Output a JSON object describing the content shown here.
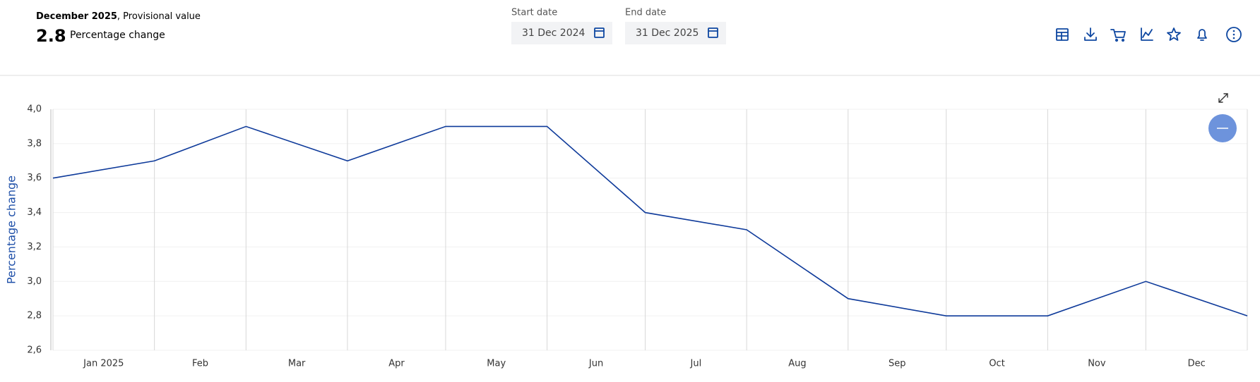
{
  "header": {
    "period": "December 2025",
    "status": ", Provisional value",
    "value": "2.8",
    "measure": "Percentage change",
    "start_label": "Start date",
    "start_date": "31 Dec 2024",
    "end_label": "End date",
    "end_date": "31 Dec 2025"
  },
  "chart_data": {
    "type": "line",
    "ylabel": "Percentage change",
    "xtick_labels": [
      "Jan 2025",
      "Feb",
      "Mar",
      "Apr",
      "May",
      "Jun",
      "Jul",
      "Aug",
      "Sep",
      "Oct",
      "Nov",
      "Dec"
    ],
    "series": [
      {
        "name": "Percentage change",
        "color": "#0e3a9a",
        "values": [
          3.6,
          3.7,
          3.9,
          3.7,
          3.9,
          3.9,
          3.4,
          3.3,
          2.9,
          2.8,
          2.8,
          3.0,
          2.8
        ]
      }
    ],
    "ylim": [
      2.6,
      4.0
    ],
    "yticks": [
      {
        "value": 2.6,
        "label": "2,6"
      },
      {
        "value": 2.8,
        "label": "2,8"
      },
      {
        "value": 3.0,
        "label": "3,0"
      },
      {
        "value": 3.2,
        "label": "3,2"
      },
      {
        "value": 3.4,
        "label": "3,4"
      },
      {
        "value": 3.6,
        "label": "3,6"
      },
      {
        "value": 3.8,
        "label": "3,8"
      },
      {
        "value": 4.0,
        "label": "4,0"
      }
    ],
    "grid": true
  }
}
